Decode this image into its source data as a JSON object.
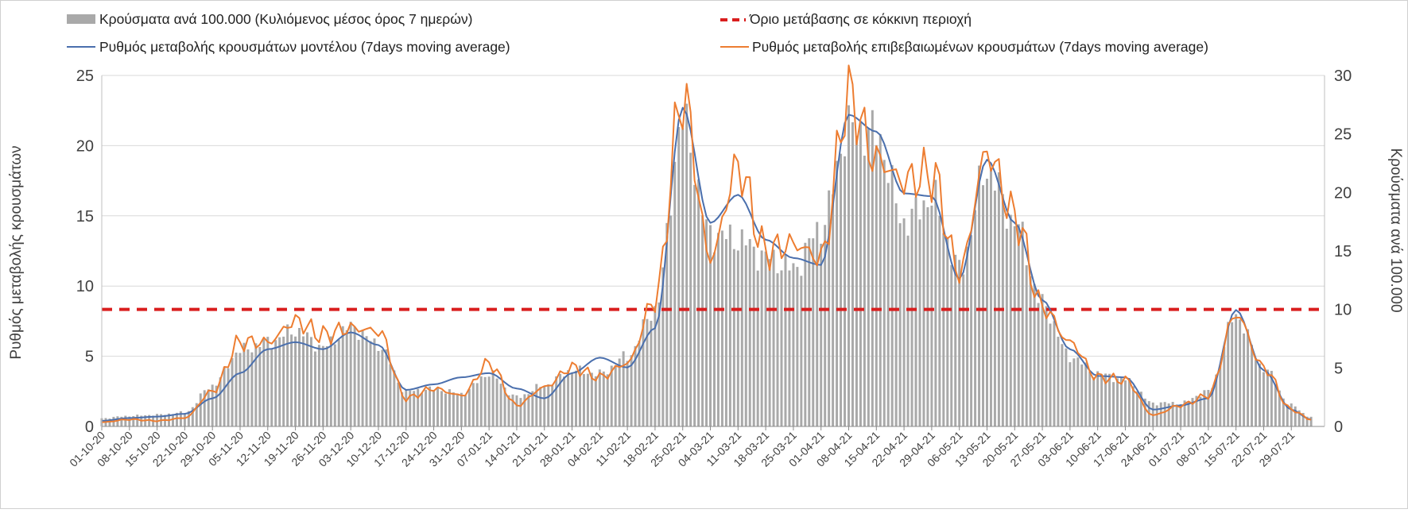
{
  "chart_data": {
    "type": "bar+line",
    "title": "",
    "y_left_label": "Ρυθμός μεταβολής κρουσμάτων",
    "y_right_label": "Κρούσματα ανά 100.000",
    "ylim_left": [
      0,
      25
    ],
    "ylim_right": [
      0,
      30
    ],
    "yticks_left": [
      "0",
      "5",
      "10",
      "15",
      "20",
      "25"
    ],
    "yticks_right": [
      "0",
      "5",
      "10",
      "15",
      "20",
      "25",
      "30"
    ],
    "x_start": "01-10-20",
    "x_end": "04-08-21",
    "x_tick_labels": [
      "01-10-20",
      "08-10-20",
      "15-10-20",
      "22-10-20",
      "29-10-20",
      "05-11-20",
      "12-11-20",
      "19-11-20",
      "26-11-20",
      "03-12-20",
      "10-12-20",
      "17-12-20",
      "24-12-20",
      "31-12-20",
      "07-01-21",
      "14-01-21",
      "21-01-21",
      "28-01-21",
      "04-02-21",
      "11-02-21",
      "18-02-21",
      "25-02-21",
      "04-03-21",
      "11-03-21",
      "18-03-21",
      "25-03-21",
      "01-04-21",
      "08-04-21",
      "15-04-21",
      "22-04-21",
      "29-04-21",
      "06-05-21",
      "13-05-21",
      "20-05-21",
      "27-05-21",
      "03-06-21",
      "10-06-21",
      "17-06-21",
      "24-06-21",
      "01-07-21",
      "08-07-21",
      "15-07-21",
      "22-07-21",
      "29-07-21"
    ],
    "grid": true,
    "legend_position": "top",
    "threshold": {
      "name": "Όριο μετάβασης σε κόκκινη περιοχή",
      "value_right": 10,
      "color": "#d91e1e"
    },
    "series": [
      {
        "name": "Κρούσματα ανά 100.000 (Κυλιόμενος μέσος όρος 7 ημερών)",
        "kind": "bar",
        "axis": "right",
        "color": "#a9a9a9",
        "keypoints_week_value": [
          [
            0,
            0.7
          ],
          [
            1,
            0.9
          ],
          [
            2,
            1.0
          ],
          [
            3,
            1.2
          ],
          [
            4,
            3.5
          ],
          [
            5,
            6.5
          ],
          [
            6,
            7.2
          ],
          [
            7,
            8.2
          ],
          [
            8,
            6.8
          ],
          [
            9,
            8.5
          ],
          [
            10,
            7.0
          ],
          [
            11,
            3.0
          ],
          [
            12,
            3.2
          ],
          [
            13,
            2.8
          ],
          [
            14,
            4.5
          ],
          [
            15,
            2.5
          ],
          [
            16,
            3.5
          ],
          [
            17,
            4.8
          ],
          [
            18,
            4.5
          ],
          [
            19,
            6.0
          ],
          [
            20,
            10.0
          ],
          [
            21,
            26.0
          ],
          [
            22,
            16.5
          ],
          [
            23,
            16.0
          ],
          [
            24,
            14.5
          ],
          [
            25,
            13.5
          ],
          [
            26,
            17.0
          ],
          [
            27,
            25.5
          ],
          [
            28,
            25.0
          ],
          [
            29,
            17.5
          ],
          [
            30,
            19.5
          ],
          [
            31,
            13.5
          ],
          [
            32,
            22.0
          ],
          [
            33,
            17.5
          ],
          [
            34,
            10.5
          ],
          [
            35,
            6.0
          ],
          [
            36,
            4.5
          ],
          [
            37,
            4.0
          ],
          [
            38,
            2.0
          ],
          [
            39,
            2.0
          ],
          [
            40,
            3.0
          ],
          [
            41,
            9.5
          ],
          [
            42,
            5.0
          ],
          [
            43,
            1.8
          ],
          [
            43.7,
            0.8
          ]
        ]
      },
      {
        "name": "Ρυθμός μεταβολής κρουσμάτων μοντέλου (7days moving average)",
        "kind": "line",
        "axis": "left",
        "color": "#4a6fad",
        "keypoints_week_value": [
          [
            0,
            0.4
          ],
          [
            1,
            0.6
          ],
          [
            2,
            0.7
          ],
          [
            3,
            0.9
          ],
          [
            4,
            2.0
          ],
          [
            5,
            3.8
          ],
          [
            6,
            5.5
          ],
          [
            7,
            6.0
          ],
          [
            8,
            5.5
          ],
          [
            9,
            6.7
          ],
          [
            10,
            5.8
          ],
          [
            11,
            2.6
          ],
          [
            12,
            3.0
          ],
          [
            13,
            3.5
          ],
          [
            14,
            3.8
          ],
          [
            15,
            2.7
          ],
          [
            16,
            2.0
          ],
          [
            17,
            3.8
          ],
          [
            18,
            4.9
          ],
          [
            19,
            4.2
          ],
          [
            20,
            7.0
          ],
          [
            21,
            22.7
          ],
          [
            22,
            14.5
          ],
          [
            23,
            16.5
          ],
          [
            24,
            13.3
          ],
          [
            25,
            12.0
          ],
          [
            26,
            11.5
          ],
          [
            27,
            22.2
          ],
          [
            28,
            21.0
          ],
          [
            29,
            16.6
          ],
          [
            30,
            16.4
          ],
          [
            31,
            10.5
          ],
          [
            32,
            19.0
          ],
          [
            33,
            14.5
          ],
          [
            34,
            9.0
          ],
          [
            35,
            5.5
          ],
          [
            36,
            3.6
          ],
          [
            37,
            3.5
          ],
          [
            38,
            1.2
          ],
          [
            39,
            1.5
          ],
          [
            40,
            2.0
          ],
          [
            41,
            8.3
          ],
          [
            42,
            4.0
          ],
          [
            43,
            1.2
          ],
          [
            43.7,
            0.5
          ]
        ]
      },
      {
        "name": "Ρυθμός μεταβολής επιβεβαιωμένων κρουσμάτων (7days moving average)",
        "kind": "line",
        "axis": "left",
        "color": "#ed7d31",
        "keypoints_week_value": [
          [
            0,
            0.3
          ],
          [
            1,
            0.5
          ],
          [
            2,
            0.4
          ],
          [
            3,
            0.6
          ],
          [
            4,
            2.5
          ],
          [
            5,
            6.0
          ],
          [
            6,
            6.0
          ],
          [
            7,
            7.5
          ],
          [
            8,
            6.5
          ],
          [
            9,
            7.0
          ],
          [
            10,
            6.8
          ],
          [
            11,
            2.0
          ],
          [
            12,
            2.7
          ],
          [
            13,
            2.2
          ],
          [
            14,
            4.5
          ],
          [
            15,
            1.5
          ],
          [
            16,
            2.8
          ],
          [
            17,
            4.2
          ],
          [
            18,
            3.5
          ],
          [
            19,
            4.5
          ],
          [
            20,
            9.0
          ],
          [
            21,
            23.5
          ],
          [
            22,
            12.0
          ],
          [
            23,
            18.5
          ],
          [
            24,
            12.5
          ],
          [
            25,
            13.0
          ],
          [
            26,
            12.0
          ],
          [
            27,
            23.5
          ],
          [
            28,
            19.0
          ],
          [
            29,
            17.5
          ],
          [
            30,
            18.0
          ],
          [
            31,
            11.0
          ],
          [
            32,
            19.5
          ],
          [
            33,
            15.0
          ],
          [
            34,
            8.5
          ],
          [
            35,
            6.0
          ],
          [
            36,
            3.5
          ],
          [
            37,
            3.3
          ],
          [
            38,
            0.8
          ],
          [
            39,
            1.5
          ],
          [
            40,
            2.2
          ],
          [
            41,
            8.0
          ],
          [
            42,
            4.2
          ],
          [
            43,
            1.2
          ],
          [
            43.7,
            0.5
          ]
        ]
      }
    ]
  }
}
